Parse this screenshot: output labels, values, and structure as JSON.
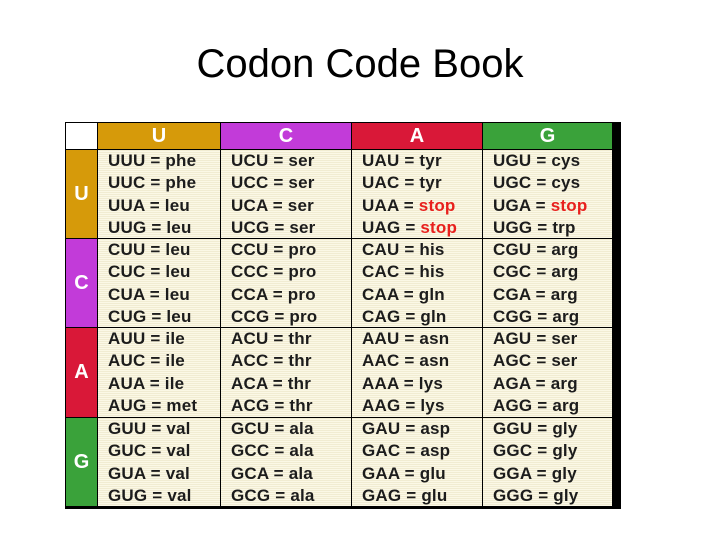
{
  "title": "Codon Code Book",
  "colors": {
    "U": "#d69a0a",
    "C": "#c23bd9",
    "A": "#d91838",
    "G": "#3aa23a",
    "stop": "#e8201d",
    "cell_bg": "#fbf8e6"
  },
  "columns": [
    "U",
    "C",
    "A",
    "G"
  ],
  "rows": [
    {
      "label": "U",
      "cells": [
        [
          {
            "codon": "UUU",
            "aa": "phe"
          },
          {
            "codon": "UUC",
            "aa": "phe"
          },
          {
            "codon": "UUA",
            "aa": "leu"
          },
          {
            "codon": "UUG",
            "aa": "leu"
          }
        ],
        [
          {
            "codon": "UCU",
            "aa": "ser"
          },
          {
            "codon": "UCC",
            "aa": "ser"
          },
          {
            "codon": "UCA",
            "aa": "ser"
          },
          {
            "codon": "UCG",
            "aa": "ser"
          }
        ],
        [
          {
            "codon": "UAU",
            "aa": "tyr"
          },
          {
            "codon": "UAC",
            "aa": "tyr"
          },
          {
            "codon": "UAA",
            "aa": "stop"
          },
          {
            "codon": "UAG",
            "aa": "stop"
          }
        ],
        [
          {
            "codon": "UGU",
            "aa": "cys"
          },
          {
            "codon": "UGC",
            "aa": "cys"
          },
          {
            "codon": "UGA",
            "aa": "stop"
          },
          {
            "codon": "UGG",
            "aa": "trp"
          }
        ]
      ]
    },
    {
      "label": "C",
      "cells": [
        [
          {
            "codon": "CUU",
            "aa": "leu"
          },
          {
            "codon": "CUC",
            "aa": "leu"
          },
          {
            "codon": "CUA",
            "aa": "leu"
          },
          {
            "codon": "CUG",
            "aa": "leu"
          }
        ],
        [
          {
            "codon": "CCU",
            "aa": "pro"
          },
          {
            "codon": "CCC",
            "aa": "pro"
          },
          {
            "codon": "CCA",
            "aa": "pro"
          },
          {
            "codon": "CCG",
            "aa": "pro"
          }
        ],
        [
          {
            "codon": "CAU",
            "aa": "his"
          },
          {
            "codon": "CAC",
            "aa": "his"
          },
          {
            "codon": "CAA",
            "aa": "gln"
          },
          {
            "codon": "CAG",
            "aa": "gln"
          }
        ],
        [
          {
            "codon": "CGU",
            "aa": "arg"
          },
          {
            "codon": "CGC",
            "aa": "arg"
          },
          {
            "codon": "CGA",
            "aa": "arg"
          },
          {
            "codon": "CGG",
            "aa": "arg"
          }
        ]
      ]
    },
    {
      "label": "A",
      "cells": [
        [
          {
            "codon": "AUU",
            "aa": "ile"
          },
          {
            "codon": "AUC",
            "aa": "ile"
          },
          {
            "codon": "AUA",
            "aa": "ile"
          },
          {
            "codon": "AUG",
            "aa": "met"
          }
        ],
        [
          {
            "codon": "ACU",
            "aa": "thr"
          },
          {
            "codon": "ACC",
            "aa": "thr"
          },
          {
            "codon": "ACA",
            "aa": "thr"
          },
          {
            "codon": "ACG",
            "aa": "thr"
          }
        ],
        [
          {
            "codon": "AAU",
            "aa": "asn"
          },
          {
            "codon": "AAC",
            "aa": "asn"
          },
          {
            "codon": "AAA",
            "aa": "lys"
          },
          {
            "codon": "AAG",
            "aa": "lys"
          }
        ],
        [
          {
            "codon": "AGU",
            "aa": "ser"
          },
          {
            "codon": "AGC",
            "aa": "ser"
          },
          {
            "codon": "AGA",
            "aa": "arg"
          },
          {
            "codon": "AGG",
            "aa": "arg"
          }
        ]
      ]
    },
    {
      "label": "G",
      "cells": [
        [
          {
            "codon": "GUU",
            "aa": "val"
          },
          {
            "codon": "GUC",
            "aa": "val"
          },
          {
            "codon": "GUA",
            "aa": "val"
          },
          {
            "codon": "GUG",
            "aa": "val"
          }
        ],
        [
          {
            "codon": "GCU",
            "aa": "ala"
          },
          {
            "codon": "GCC",
            "aa": "ala"
          },
          {
            "codon": "GCA",
            "aa": "ala"
          },
          {
            "codon": "GCG",
            "aa": "ala"
          }
        ],
        [
          {
            "codon": "GAU",
            "aa": "asp"
          },
          {
            "codon": "GAC",
            "aa": "asp"
          },
          {
            "codon": "GAA",
            "aa": "glu"
          },
          {
            "codon": "GAG",
            "aa": "glu"
          }
        ],
        [
          {
            "codon": "GGU",
            "aa": "gly"
          },
          {
            "codon": "GGC",
            "aa": "gly"
          },
          {
            "codon": "GGA",
            "aa": "gly"
          },
          {
            "codon": "GGG",
            "aa": "gly"
          }
        ]
      ]
    }
  ]
}
